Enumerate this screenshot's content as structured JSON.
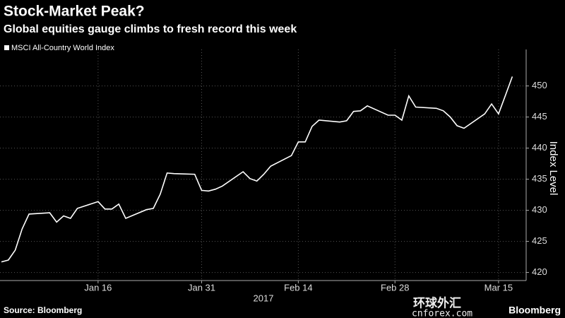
{
  "chart_data": {
    "type": "line",
    "title": "Stock-Market Peak?",
    "subtitle": "Global equities gauge climbs to fresh record this week",
    "y_label": "Index Level",
    "x_year_label": "2017",
    "source": "Source: Bloomberg",
    "brand": "Bloomberg",
    "watermark": [
      "环球外汇",
      "cnforex.com"
    ],
    "x": [
      "2017-01-02",
      "2017-01-03",
      "2017-01-04",
      "2017-01-05",
      "2017-01-06",
      "2017-01-09",
      "2017-01-10",
      "2017-01-11",
      "2017-01-12",
      "2017-01-13",
      "2017-01-16",
      "2017-01-17",
      "2017-01-18",
      "2017-01-19",
      "2017-01-20",
      "2017-01-23",
      "2017-01-24",
      "2017-01-25",
      "2017-01-26",
      "2017-01-27",
      "2017-01-30",
      "2017-01-31",
      "2017-02-01",
      "2017-02-02",
      "2017-02-03",
      "2017-02-06",
      "2017-02-07",
      "2017-02-08",
      "2017-02-09",
      "2017-02-10",
      "2017-02-13",
      "2017-02-14",
      "2017-02-15",
      "2017-02-16",
      "2017-02-17",
      "2017-02-20",
      "2017-02-21",
      "2017-02-22",
      "2017-02-23",
      "2017-02-24",
      "2017-02-27",
      "2017-02-28",
      "2017-03-01",
      "2017-03-02",
      "2017-03-03",
      "2017-03-06",
      "2017-03-07",
      "2017-03-08",
      "2017-03-09",
      "2017-03-10",
      "2017-03-13",
      "2017-03-14",
      "2017-03-15",
      "2017-03-16",
      "2017-03-17"
    ],
    "series": [
      {
        "name": "MSCI All-Country World Index",
        "color": "#ffffff",
        "values": [
          421.7,
          422.0,
          423.6,
          427.0,
          429.4,
          429.6,
          428.1,
          429.1,
          428.7,
          430.3,
          431.4,
          430.2,
          430.2,
          431.0,
          428.7,
          430.1,
          430.3,
          432.6,
          436.0,
          435.9,
          435.8,
          433.2,
          433.1,
          433.4,
          433.9,
          436.2,
          435.1,
          434.7,
          435.8,
          437.1,
          438.8,
          441.0,
          441.0,
          443.5,
          444.5,
          444.2,
          444.4,
          445.9,
          446.0,
          446.8,
          445.3,
          445.3,
          444.5,
          448.4,
          446.6,
          446.4,
          446.0,
          445.0,
          443.6,
          443.2,
          445.5,
          447.1,
          445.5,
          448.5,
          451.5
        ]
      }
    ],
    "xlim": [
      "2017-01-02",
      "2017-03-19"
    ],
    "xticks": [
      {
        "value": "2017-01-16",
        "label": "Jan 16"
      },
      {
        "value": "2017-01-31",
        "label": "Jan 31"
      },
      {
        "value": "2017-02-14",
        "label": "Feb 14"
      },
      {
        "value": "2017-02-28",
        "label": "Feb 28"
      },
      {
        "value": "2017-03-15",
        "label": "Mar 15"
      }
    ],
    "ylim": [
      418.7,
      455.3
    ],
    "yticks": [
      420,
      425,
      430,
      435,
      440,
      445,
      450
    ],
    "grid": true
  }
}
